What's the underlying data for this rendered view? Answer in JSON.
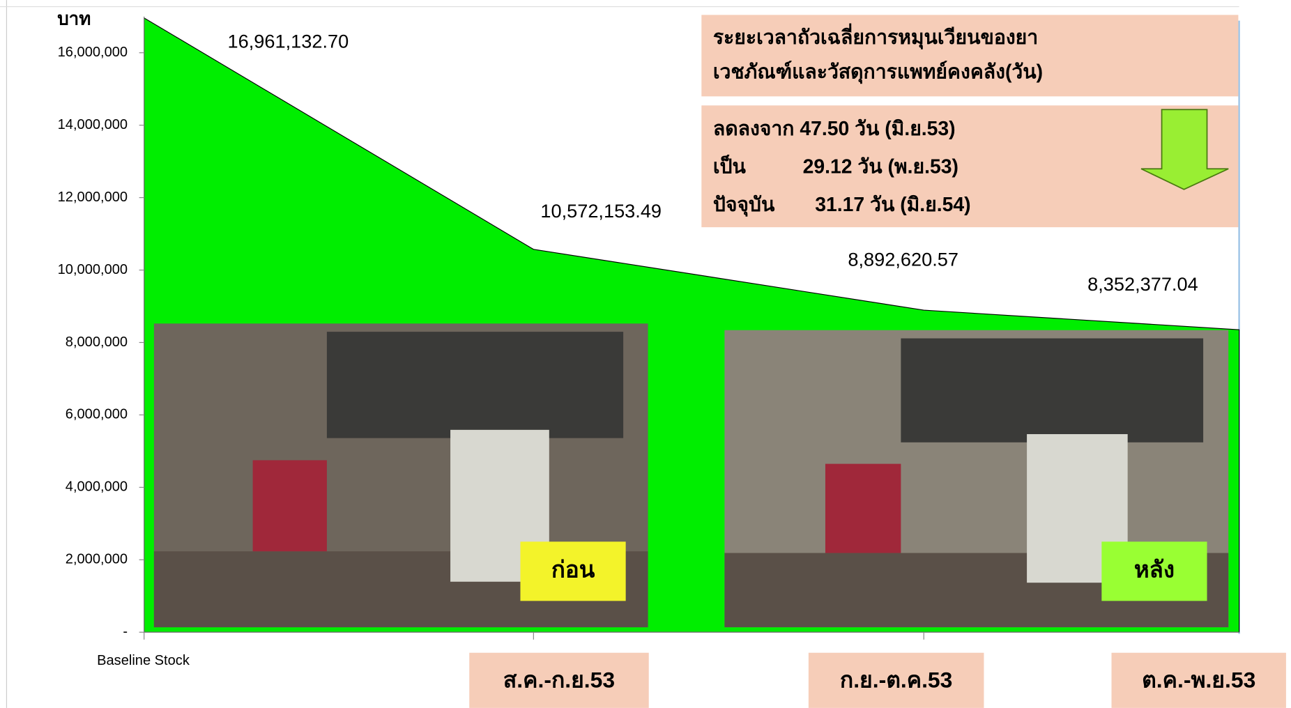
{
  "chart_data": {
    "type": "area",
    "y_axis_title": "บาท",
    "categories": [
      "Baseline Stock",
      "ส.ค.-ก.ย.53",
      "ก.ย.-ต.ค.53",
      "ต.ค.-พ.ย.53"
    ],
    "values": [
      16961132.7,
      10572153.49,
      8892620.57,
      8352377.04
    ],
    "value_labels": [
      "16,961,132.70",
      "10,572,153.49",
      "8,892,620.57",
      "8,352,377.04"
    ],
    "color": "#00ee00",
    "ylim": [
      0,
      17000000
    ],
    "yticks": [
      {
        "value": 0,
        "label": "-"
      },
      {
        "value": 2000000,
        "label": "2,000,000"
      },
      {
        "value": 4000000,
        "label": "4,000,000"
      },
      {
        "value": 6000000,
        "label": "6,000,000"
      },
      {
        "value": 8000000,
        "label": "8,000,000"
      },
      {
        "value": 10000000,
        "label": "10,000,000"
      },
      {
        "value": 12000000,
        "label": "12,000,000"
      },
      {
        "value": 14000000,
        "label": "14,000,000"
      },
      {
        "value": 16000000,
        "label": "16,000,000"
      }
    ],
    "annotation": {
      "title_lines": [
        "ระยะเวลาถัวเฉลี่ยการหมุนเวียนของยา",
        "เวชภัณฑ์และวัสดุการแพทย์คงคลัง(วัน)"
      ],
      "rows": [
        [
          "ลดลงจาก 47.50 วัน (มิ.ย.53)"
        ],
        [
          "เป็น",
          "29.12 วัน (พ.ย.53)"
        ],
        [
          "ปัจจุบัน",
          "31.17 วัน (มิ.ย.54)"
        ]
      ]
    },
    "photo_labels": [
      "ก่อน",
      "หลัง"
    ]
  }
}
